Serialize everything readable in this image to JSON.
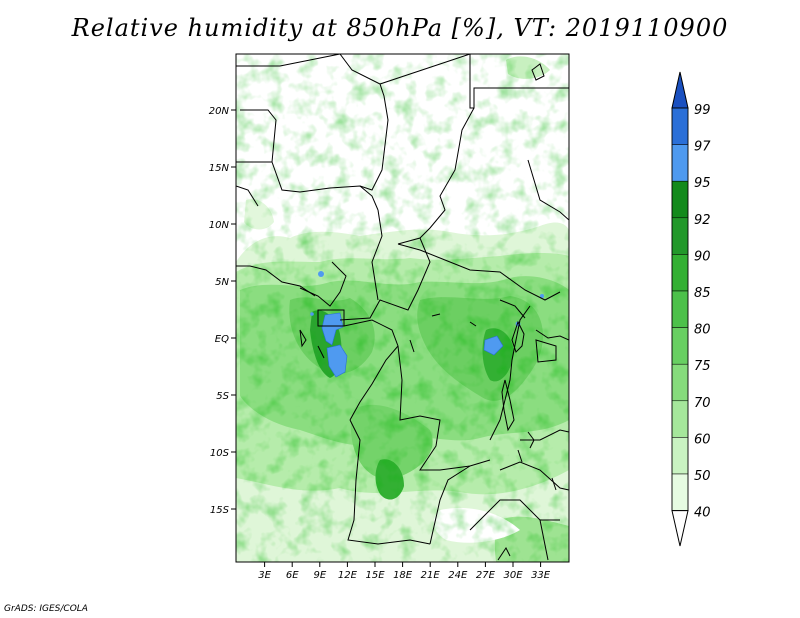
{
  "title": "Relative humidity at 850hPa [%], VT: 2019110900",
  "credit": "GrADS: IGES/COLA",
  "map": {
    "lon_labels": [
      "3E",
      "6E",
      "9E",
      "12E",
      "15E",
      "18E",
      "21E",
      "24E",
      "27E",
      "30E",
      "33E"
    ],
    "lat_labels": [
      "20N",
      "15N",
      "10N",
      "5N",
      "EQ",
      "5S",
      "10S",
      "15S"
    ]
  },
  "colorbar": {
    "labels": [
      "40",
      "50",
      "60",
      "70",
      "75",
      "80",
      "85",
      "90",
      "92",
      "95",
      "97",
      "99"
    ],
    "colors": [
      "#ffffff",
      "#e6fbe2",
      "#c9f3c2",
      "#a5e79b",
      "#86dc7c",
      "#68cf62",
      "#4cc14a",
      "#33b033",
      "#22982a",
      "#138a1c",
      "#4f9af0",
      "#2a6fd8",
      "#1a50c0"
    ]
  }
}
